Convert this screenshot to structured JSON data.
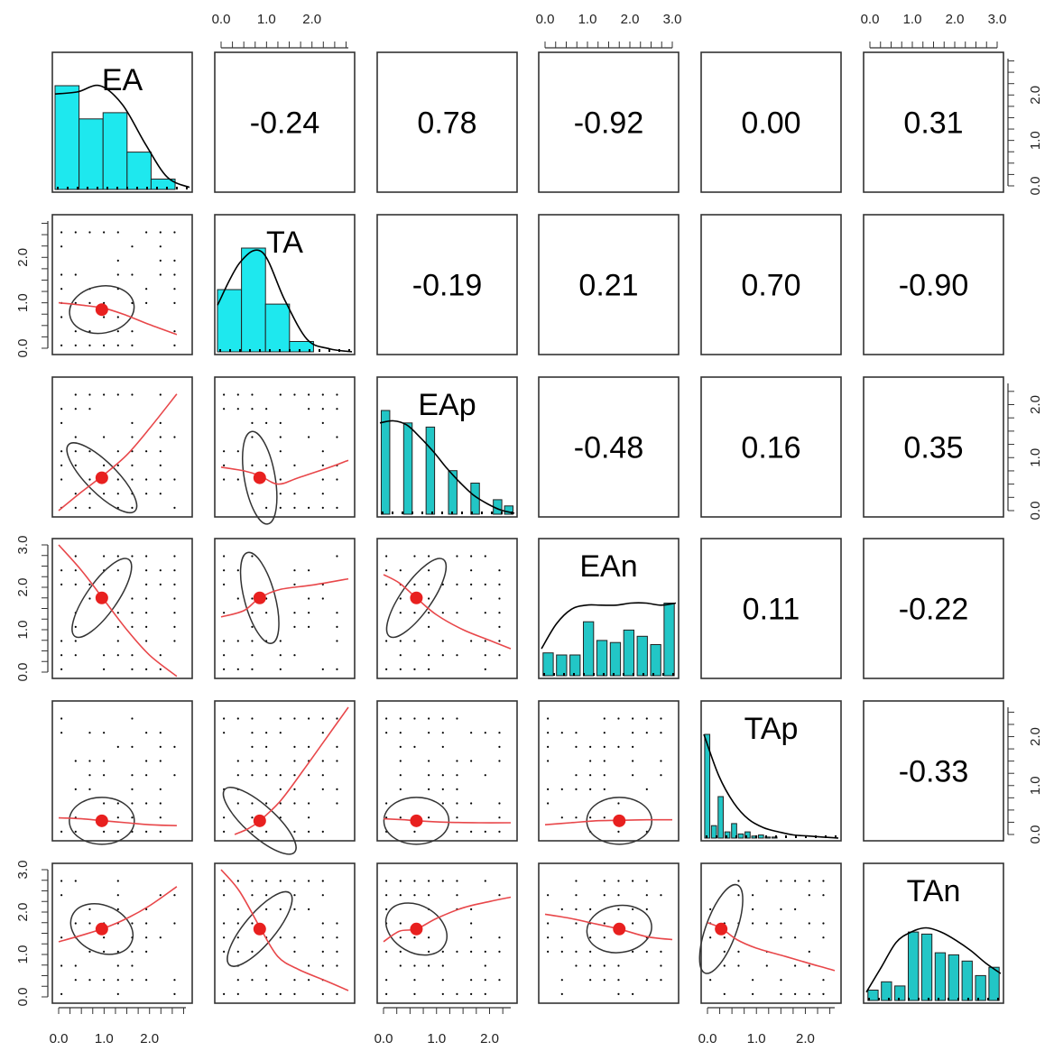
{
  "chart_data": {
    "type": "scatter",
    "variables": [
      "EA",
      "TA",
      "EAp",
      "EAn",
      "TAp",
      "TAn"
    ],
    "correlations": [
      {
        "row": 0,
        "col": 1,
        "value": "-0.24"
      },
      {
        "row": 0,
        "col": 2,
        "value": "0.78"
      },
      {
        "row": 0,
        "col": 3,
        "value": "-0.92"
      },
      {
        "row": 0,
        "col": 4,
        "value": "0.00"
      },
      {
        "row": 0,
        "col": 5,
        "value": "0.31"
      },
      {
        "row": 1,
        "col": 2,
        "value": "-0.19"
      },
      {
        "row": 1,
        "col": 3,
        "value": "0.21"
      },
      {
        "row": 1,
        "col": 4,
        "value": "0.70"
      },
      {
        "row": 1,
        "col": 5,
        "value": "-0.90"
      },
      {
        "row": 2,
        "col": 3,
        "value": "-0.48"
      },
      {
        "row": 2,
        "col": 4,
        "value": "0.16"
      },
      {
        "row": 2,
        "col": 5,
        "value": "0.35"
      },
      {
        "row": 3,
        "col": 4,
        "value": "0.11"
      },
      {
        "row": 3,
        "col": 5,
        "value": "-0.22"
      },
      {
        "row": 4,
        "col": 5,
        "value": "-0.33"
      }
    ],
    "ranges": {
      "EA": [
        0,
        2.8
      ],
      "TA": [
        0,
        2.8
      ],
      "EAp": [
        0,
        2.4
      ],
      "EAn": [
        0,
        3
      ],
      "TAp": [
        0,
        2.6
      ],
      "TAn": [
        0,
        3
      ]
    },
    "means": {
      "EA": 0.95,
      "TA": 0.85,
      "EAp": 0.62,
      "EAn": 1.75,
      "TAp": 0.28,
      "TAn": 1.6
    },
    "histograms": {
      "EA": {
        "edges": [
          0,
          0.5,
          1.0,
          1.5,
          2.0,
          2.5,
          2.8
        ],
        "heights": [
          1.0,
          0.68,
          0.74,
          0.36,
          0.1,
          0.0
        ],
        "density": [
          0.92,
          0.94,
          1.0,
          0.82,
          0.45,
          0.12,
          0.02
        ]
      },
      "TA": {
        "edges": [
          0,
          0.5,
          1.0,
          1.5,
          2.0,
          2.5,
          2.8
        ],
        "heights": [
          0.6,
          1.0,
          0.46,
          0.1,
          0.0,
          0.0
        ],
        "density": [
          0.45,
          0.86,
          0.96,
          0.5,
          0.12,
          0.03,
          0.0
        ]
      },
      "EAp": {
        "edges": [
          0,
          0.2,
          0.4,
          0.6,
          0.8,
          1.0,
          1.2,
          1.4,
          1.6,
          1.8,
          2.0,
          2.2,
          2.4
        ],
        "heights": [
          1.0,
          0,
          0.88,
          0,
          0.84,
          0,
          0.42,
          0,
          0.3,
          0,
          0.14,
          0.08
        ],
        "density": [
          0.88,
          0.9,
          0.86,
          0.74,
          0.6,
          0.44,
          0.3,
          0.18,
          0.1,
          0.04,
          0.01
        ]
      },
      "EAn": {
        "edges": [
          0,
          0.3,
          0.6,
          0.9,
          1.2,
          1.5,
          1.8,
          2.1,
          2.4,
          2.7,
          3.0
        ],
        "heights": [
          0.22,
          0.2,
          0.2,
          0.52,
          0.34,
          0.32,
          0.44,
          0.38,
          0.3,
          0.7
        ],
        "density": [
          0.26,
          0.5,
          0.64,
          0.68,
          0.68,
          0.68,
          0.7,
          0.7,
          0.68,
          0.7
        ]
      },
      "TAp": {
        "edges": [
          0,
          0.13,
          0.26,
          0.39,
          0.52,
          0.65,
          0.78,
          0.91,
          1.04,
          1.17,
          1.3,
          1.43
        ],
        "heights": [
          1.0,
          0.12,
          0.4,
          0.06,
          0.14,
          0.04,
          0.06,
          0.02,
          0.03,
          0.01,
          0.01
        ],
        "density": [
          1.0,
          0.6,
          0.34,
          0.18,
          0.1,
          0.06,
          0.03,
          0.02,
          0.01,
          0.0
        ]
      },
      "TAn": {
        "edges": [
          0,
          0.3,
          0.6,
          0.9,
          1.2,
          1.5,
          1.8,
          2.1,
          2.4,
          2.7,
          3.0
        ],
        "heights": [
          0.1,
          0.18,
          0.14,
          0.66,
          0.64,
          0.46,
          0.44,
          0.38,
          0.24,
          0.32
        ],
        "density": [
          0.08,
          0.32,
          0.56,
          0.66,
          0.7,
          0.66,
          0.58,
          0.48,
          0.36,
          0.26
        ]
      }
    },
    "loess": {
      "1-0": [
        [
          0,
          1.0
        ],
        [
          0.5,
          0.95
        ],
        [
          1.0,
          0.88
        ],
        [
          1.5,
          0.72
        ],
        [
          2.0,
          0.52
        ],
        [
          2.6,
          0.3
        ]
      ],
      "2-0": [
        [
          0,
          0.0
        ],
        [
          0.5,
          0.35
        ],
        [
          1.0,
          0.68
        ],
        [
          1.5,
          1.05
        ],
        [
          2.0,
          1.55
        ],
        [
          2.6,
          2.2
        ]
      ],
      "2-1": [
        [
          0,
          0.82
        ],
        [
          0.5,
          0.75
        ],
        [
          0.85,
          0.66
        ],
        [
          1.25,
          0.5
        ],
        [
          1.7,
          0.62
        ],
        [
          2.4,
          0.82
        ],
        [
          2.8,
          0.95
        ]
      ],
      "3-0": [
        [
          0,
          3.0
        ],
        [
          0.5,
          2.4
        ],
        [
          1.0,
          1.7
        ],
        [
          1.5,
          1.0
        ],
        [
          2.0,
          0.4
        ],
        [
          2.6,
          -0.1
        ]
      ],
      "3-1": [
        [
          0,
          1.3
        ],
        [
          0.5,
          1.45
        ],
        [
          0.85,
          1.75
        ],
        [
          1.3,
          1.95
        ],
        [
          2.0,
          2.05
        ],
        [
          2.8,
          2.2
        ]
      ],
      "3-2": [
        [
          0,
          2.3
        ],
        [
          0.3,
          2.1
        ],
        [
          0.62,
          1.75
        ],
        [
          1.0,
          1.35
        ],
        [
          1.5,
          1.0
        ],
        [
          2.0,
          0.75
        ],
        [
          2.4,
          0.55
        ]
      ],
      "4-0": [
        [
          0,
          0.34
        ],
        [
          0.5,
          0.32
        ],
        [
          1.0,
          0.28
        ],
        [
          1.5,
          0.24
        ],
        [
          2.0,
          0.2
        ],
        [
          2.6,
          0.18
        ]
      ],
      "4-1": [
        [
          0.3,
          0.0
        ],
        [
          0.6,
          0.12
        ],
        [
          0.85,
          0.28
        ],
        [
          1.3,
          0.68
        ],
        [
          1.8,
          1.3
        ],
        [
          2.3,
          1.95
        ],
        [
          2.8,
          2.6
        ]
      ],
      "4-2": [
        [
          0,
          0.32
        ],
        [
          0.4,
          0.3
        ],
        [
          0.62,
          0.28
        ],
        [
          1.2,
          0.25
        ],
        [
          1.8,
          0.24
        ],
        [
          2.4,
          0.24
        ]
      ],
      "4-3": [
        [
          0,
          0.2
        ],
        [
          0.6,
          0.24
        ],
        [
          1.2,
          0.28
        ],
        [
          1.75,
          0.29
        ],
        [
          2.4,
          0.3
        ],
        [
          3.0,
          0.3
        ]
      ],
      "5-0": [
        [
          0,
          1.3
        ],
        [
          0.5,
          1.45
        ],
        [
          1.0,
          1.62
        ],
        [
          1.5,
          1.85
        ],
        [
          2.0,
          2.15
        ],
        [
          2.6,
          2.6
        ]
      ],
      "5-1": [
        [
          0,
          3.0
        ],
        [
          0.4,
          2.5
        ],
        [
          0.85,
          1.65
        ],
        [
          1.25,
          0.95
        ],
        [
          1.7,
          0.65
        ],
        [
          2.3,
          0.38
        ],
        [
          2.8,
          0.15
        ]
      ],
      "5-2": [
        [
          0,
          1.3
        ],
        [
          0.3,
          1.55
        ],
        [
          0.62,
          1.6
        ],
        [
          1.0,
          1.85
        ],
        [
          1.5,
          2.1
        ],
        [
          2.0,
          2.25
        ],
        [
          2.4,
          2.35
        ]
      ],
      "5-3": [
        [
          0,
          1.95
        ],
        [
          0.6,
          1.85
        ],
        [
          1.2,
          1.72
        ],
        [
          1.75,
          1.6
        ],
        [
          2.4,
          1.42
        ],
        [
          3.0,
          1.35
        ]
      ],
      "5-4": [
        [
          0,
          1.75
        ],
        [
          0.28,
          1.62
        ],
        [
          0.6,
          1.35
        ],
        [
          1.0,
          1.15
        ],
        [
          1.6,
          0.95
        ],
        [
          2.2,
          0.75
        ],
        [
          2.6,
          0.62
        ]
      ]
    },
    "ellipse_rotation_deg": {
      "1-0": -10,
      "2-0": 45,
      "2-1": 80,
      "3-0": -55,
      "3-1": 75,
      "3-2": -55,
      "4-0": 0,
      "4-1": 42,
      "4-2": 0,
      "4-3": 0,
      "5-0": 25,
      "5-1": -50,
      "5-2": 30,
      "5-3": -8,
      "5-4": -70
    },
    "ticks": {
      "top": [
        {
          "col": 1,
          "labels": [
            "0.0",
            "1.0",
            "2.0"
          ],
          "values": [
            0,
            1,
            2
          ]
        },
        {
          "col": 3,
          "labels": [
            "0.0",
            "1.0",
            "2.0",
            "3.0"
          ],
          "values": [
            0,
            1,
            2,
            3
          ]
        },
        {
          "col": 5,
          "labels": [
            "0.0",
            "1.0",
            "2.0",
            "3.0"
          ],
          "values": [
            0,
            1,
            2,
            3
          ]
        }
      ],
      "bottom": [
        {
          "col": 0,
          "labels": [
            "0.0",
            "1.0",
            "2.0"
          ],
          "values": [
            0,
            1,
            2
          ]
        },
        {
          "col": 2,
          "labels": [
            "0.0",
            "1.0",
            "2.0"
          ],
          "values": [
            0,
            1,
            2
          ]
        },
        {
          "col": 4,
          "labels": [
            "0.0",
            "1.0",
            "2.0"
          ],
          "values": [
            0,
            1,
            2
          ]
        }
      ],
      "left": [
        {
          "row": 1,
          "labels": [
            "0.0",
            "1.0",
            "2.0"
          ],
          "values": [
            0,
            1,
            2
          ]
        },
        {
          "row": 3,
          "labels": [
            "0.0",
            "1.0",
            "2.0",
            "3.0"
          ],
          "values": [
            0,
            1,
            2,
            3
          ]
        },
        {
          "row": 5,
          "labels": [
            "0.0",
            "1.0",
            "2.0",
            "3.0"
          ],
          "values": [
            0,
            1,
            2,
            3
          ]
        }
      ],
      "right": [
        {
          "row": 0,
          "labels": [
            "0.0",
            "1.0",
            "2.0"
          ],
          "values": [
            0,
            1,
            2
          ]
        },
        {
          "row": 2,
          "labels": [
            "0.0",
            "1.0",
            "2.0"
          ],
          "values": [
            0,
            1,
            2
          ]
        },
        {
          "row": 4,
          "labels": [
            "0.0",
            "1.0",
            "2.0"
          ],
          "values": [
            0,
            1,
            2
          ]
        }
      ]
    },
    "colors": {
      "frame": "#333333",
      "hist_fill_wide": "#1ee8ee",
      "hist_fill_narrow": "#22c6c6",
      "density": "#000000",
      "loess": "#e8474a",
      "mean_point": "#e8201f",
      "ellipse": "#333333",
      "points": "#000000"
    },
    "grid": false,
    "legend": "none"
  }
}
